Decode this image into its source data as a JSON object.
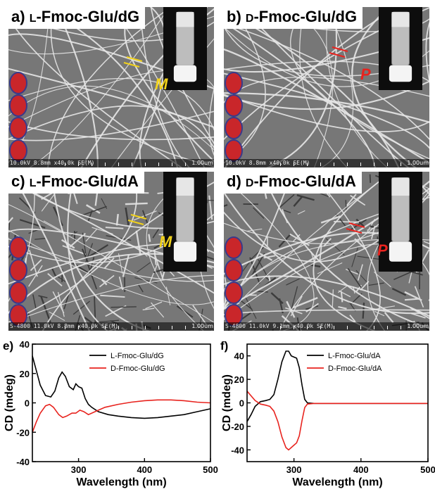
{
  "panels": [
    {
      "id": "a",
      "label": "a)",
      "prefix": "L",
      "title_rest": "-Fmoc-Glu/dG",
      "handedness_mark": "M",
      "mark_color": "#f2d21b",
      "sem_info": "10.0kV 8.8mm x40.0k SE(M)",
      "scale": "1.00um"
    },
    {
      "id": "b",
      "label": "b)",
      "prefix": "D",
      "title_rest": "-Fmoc-Glu/dG",
      "handedness_mark": "P",
      "mark_color": "#e8231e",
      "sem_info": "10.0kV 8.8mm x40.0k SE(M)",
      "scale": "1.00um"
    },
    {
      "id": "c",
      "label": "c)",
      "prefix": "L",
      "title_rest": "-Fmoc-Glu/dA",
      "handedness_mark": "M",
      "mark_color": "#f2d21b",
      "sem_info": "S-4800 11.0kV 8.8mm x40.0k SE(M)",
      "scale": "1.00um"
    },
    {
      "id": "d",
      "label": "d)",
      "prefix": "D",
      "title_rest": "-Fmoc-Glu/dA",
      "handedness_mark": "P",
      "mark_color": "#e8231e",
      "sem_info": "S-4800 11.0kV 9.1mm x40.0k SE(M)",
      "scale": "1.00um"
    }
  ],
  "chart_data": [
    {
      "panel": "e)",
      "type": "line",
      "xlabel": "Wavelength (nm)",
      "ylabel": "CD (mdeg)",
      "xlim": [
        230,
        500
      ],
      "ylim": [
        -40,
        40
      ],
      "xticks": [
        300,
        400,
        500
      ],
      "yticks": [
        -40,
        -20,
        0,
        20,
        40
      ],
      "legend_position": "top-right",
      "series": [
        {
          "name": "L-Fmoc-Glu/dG",
          "color": "#000000",
          "x": [
            230,
            236,
            242,
            250,
            258,
            264,
            270,
            275,
            280,
            286,
            292,
            296,
            300,
            305,
            310,
            315,
            320,
            330,
            345,
            360,
            380,
            400,
            420,
            440,
            460,
            480,
            500
          ],
          "y": [
            32,
            22,
            12,
            5,
            4,
            8,
            17,
            21,
            18,
            11,
            9,
            13,
            11,
            10,
            3,
            -1,
            -3,
            -6,
            -8,
            -9,
            -10,
            -10.5,
            -10,
            -9,
            -8,
            -6,
            -4
          ]
        },
        {
          "name": "D-Fmoc-Glu/dG",
          "color": "#e8231e",
          "x": [
            230,
            236,
            242,
            250,
            256,
            262,
            270,
            276,
            282,
            290,
            296,
            302,
            308,
            315,
            325,
            340,
            360,
            380,
            400,
            420,
            440,
            460,
            480,
            500
          ],
          "y": [
            -20,
            -13,
            -7,
            -2,
            -1,
            -3,
            -8,
            -10,
            -9,
            -7,
            -7,
            -5,
            -6,
            -8,
            -6,
            -3,
            -1,
            0.5,
            1.5,
            2,
            2,
            1.5,
            0.5,
            0
          ]
        }
      ]
    },
    {
      "panel": "f)",
      "type": "line",
      "xlabel": "Wavelength (nm)",
      "ylabel": "CD (mdeg)",
      "xlim": [
        230,
        500
      ],
      "ylim": [
        -50,
        50
      ],
      "xticks": [
        300,
        400,
        500
      ],
      "yticks": [
        -40,
        -20,
        0,
        20,
        40
      ],
      "legend_position": "top-right",
      "series": [
        {
          "name": "L-Fmoc-Glu/dA",
          "color": "#000000",
          "x": [
            230,
            236,
            242,
            250,
            258,
            264,
            270,
            276,
            282,
            288,
            292,
            296,
            300,
            304,
            308,
            312,
            316,
            320,
            330,
            350,
            400,
            450,
            500
          ],
          "y": [
            -16,
            -10,
            -3,
            1,
            2,
            3,
            7,
            20,
            35,
            44,
            44,
            40,
            39,
            38,
            30,
            15,
            3,
            0,
            -0.5,
            -0.5,
            -0.5,
            -0.5,
            -0.5
          ]
        },
        {
          "name": "D-Fmoc-Glu/dA",
          "color": "#e8231e",
          "x": [
            230,
            236,
            242,
            250,
            258,
            264,
            270,
            276,
            282,
            288,
            292,
            296,
            300,
            304,
            308,
            312,
            316,
            320,
            330,
            350,
            400,
            450,
            500
          ],
          "y": [
            10,
            6,
            2,
            -1,
            -2,
            -3,
            -7,
            -16,
            -29,
            -38,
            -40,
            -38,
            -36,
            -34,
            -28,
            -15,
            -4,
            -1,
            -0.5,
            -0.5,
            -0.5,
            -0.5,
            -0.5
          ]
        }
      ]
    }
  ]
}
